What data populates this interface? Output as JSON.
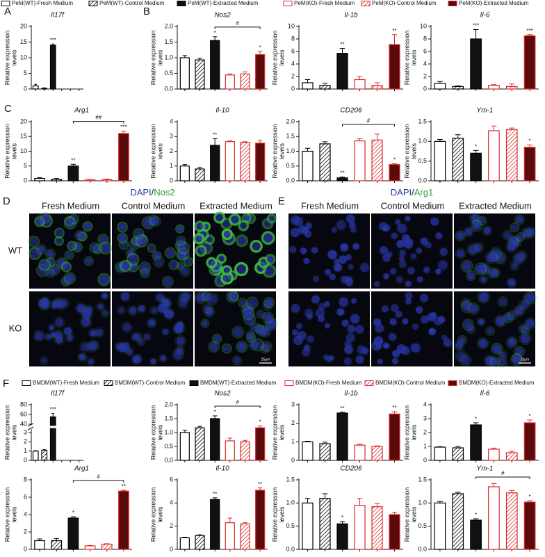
{
  "panel_labels": [
    "A",
    "B",
    "C",
    "D",
    "E",
    "F"
  ],
  "legend_top": [
    {
      "name": "PeM(WT)-Fresh Medium",
      "style": "open",
      "color": "#000000"
    },
    {
      "name": "PeM(WT)-Control Medium",
      "style": "hatch",
      "color": "#000000"
    },
    {
      "name": "PeM(WT)-Extracted Medium",
      "style": "solid",
      "color": "#000000"
    },
    {
      "name": "PeM(KO)-Fresh Medium",
      "style": "open",
      "color": "#d92b2b"
    },
    {
      "name": "PeM(KO)-Control Medium",
      "style": "hatch",
      "color": "#d92b2b"
    },
    {
      "name": "PeM(KO)-Extracted Medium",
      "style": "solid",
      "color": "#d92b2b"
    }
  ],
  "legend_f": [
    {
      "name": "BMDM(WT)-Fresh Medium",
      "style": "open",
      "color": "#000000"
    },
    {
      "name": "BMDM(WT)-Control Medium",
      "style": "hatch",
      "color": "#000000"
    },
    {
      "name": "BMDM(WT)-Extracted Medium",
      "style": "solid",
      "color": "#000000"
    },
    {
      "name": "BMDM(KO)-Fresh Medium",
      "style": "open",
      "color": "#d92b2b"
    },
    {
      "name": "BMDM(KO)-Control Medium",
      "style": "hatch",
      "color": "#d92b2b"
    },
    {
      "name": "BMDM(KO)-Extracted Medium",
      "style": "solid",
      "color": "#d92b2b"
    }
  ],
  "chart_data": [
    {
      "type": "bar",
      "title": "Il17f",
      "ylabel": [
        "Relative expression",
        "levels"
      ],
      "values": [
        1,
        0.2,
        14,
        null,
        null,
        null
      ],
      "errors": [
        0.5,
        0.2,
        0.4,
        null,
        null,
        null
      ],
      "stars": [
        null,
        null,
        "***",
        null,
        null,
        null
      ],
      "ylim": [
        0,
        20
      ],
      "yticks": [
        0,
        5,
        10,
        15,
        20
      ]
    },
    {
      "type": "bar",
      "title": "Nos2",
      "ylabel": [
        "Relative expression",
        "levels"
      ],
      "values": [
        1,
        0.93,
        1.55,
        0.45,
        0.48,
        1.1
      ],
      "errors": [
        0.07,
        0.05,
        0.12,
        0.03,
        0.07,
        0.1
      ],
      "stars": [
        null,
        null,
        "*",
        null,
        null,
        "*"
      ],
      "comparison": {
        "from": 2,
        "to": 5,
        "label": "#"
      },
      "ylim": [
        0,
        2
      ],
      "yticks": [
        {
          "value": 0,
          "label": "0.0"
        },
        0.5,
        {
          "value": 1,
          "label": "1.0"
        },
        1.5,
        {
          "value": 2,
          "label": "2.0"
        }
      ]
    },
    {
      "type": "bar",
      "title": "Il-1b",
      "ylabel": [
        "Relative expression",
        "levels"
      ],
      "values": [
        1,
        0.6,
        5.7,
        1.5,
        0.6,
        7.1
      ],
      "errors": [
        0.5,
        0.3,
        0.8,
        0.5,
        0.4,
        1.6
      ],
      "stars": [
        null,
        null,
        "**",
        null,
        null,
        "**"
      ],
      "ylim": [
        0,
        10
      ],
      "yticks": [
        0,
        2,
        4,
        6,
        8,
        10
      ]
    },
    {
      "type": "bar",
      "title": "Il-6",
      "ylabel": [
        "Relative expression",
        "levels"
      ],
      "values": [
        0.9,
        0.4,
        8,
        0.6,
        0.4,
        8.5
      ],
      "errors": [
        0.3,
        0.1,
        1.5,
        0.1,
        0.4,
        0.2
      ],
      "stars": [
        null,
        null,
        "***",
        null,
        null,
        "***"
      ],
      "ylim": [
        0,
        10
      ],
      "yticks": [
        0,
        2,
        4,
        6,
        8,
        10
      ]
    },
    {
      "type": "bar",
      "title": "Arg1",
      "ylabel": [
        "Relative expression",
        "levels"
      ],
      "values": [
        0.8,
        0.5,
        5,
        0.3,
        0.4,
        16
      ],
      "errors": [
        0.3,
        0.3,
        0.6,
        0.1,
        0.2,
        0.8
      ],
      "stars": [
        null,
        null,
        "**",
        null,
        null,
        "***"
      ],
      "comparison": {
        "from": 2,
        "to": 5,
        "label": "##"
      },
      "ylim": [
        0,
        20
      ],
      "yticks": [
        0,
        5,
        10,
        15,
        20
      ]
    },
    {
      "type": "bar",
      "title": "Il-10",
      "ylabel": [
        "Relative expression",
        "levels"
      ],
      "values": [
        1,
        0.8,
        2.4,
        2.65,
        2.6,
        2.55
      ],
      "errors": [
        0.1,
        0.1,
        0.45,
        0.05,
        0.05,
        0.2
      ],
      "stars": [
        null,
        null,
        "**",
        null,
        null,
        null
      ],
      "ylim": [
        0,
        4
      ],
      "yticks": [
        0,
        1,
        2,
        3,
        4
      ]
    },
    {
      "type": "bar",
      "title": "CD206",
      "ylabel": [
        "Relative expression",
        "levels"
      ],
      "values": [
        1,
        1.25,
        0.1,
        1.35,
        1.38,
        0.55
      ],
      "errors": [
        0.1,
        0.07,
        0.03,
        0.07,
        0.2,
        0.03
      ],
      "stars": [
        null,
        null,
        "**",
        null,
        null,
        "*"
      ],
      "comparison": {
        "from": 2,
        "to": 5,
        "label": "#"
      },
      "ylim": [
        0,
        2
      ],
      "yticks": [
        {
          "value": 0,
          "label": "0.0"
        },
        0.5,
        {
          "value": 1,
          "label": "1.0"
        },
        1.5,
        {
          "value": 2,
          "label": "2.0"
        }
      ]
    },
    {
      "type": "bar",
      "title": "Ym-1",
      "ylabel": [
        "Relative expression",
        "levels"
      ],
      "values": [
        1,
        1.08,
        0.7,
        1.27,
        1.3,
        0.85
      ],
      "errors": [
        0.05,
        0.09,
        0.07,
        0.12,
        0.04,
        0.06
      ],
      "stars": [
        null,
        null,
        "*",
        null,
        null,
        "*"
      ],
      "ylim": [
        0,
        1.5
      ],
      "yticks": [
        {
          "value": 0,
          "label": "0.0"
        },
        0.5,
        {
          "value": 1,
          "label": "1.0"
        },
        1.5
      ]
    },
    {
      "type": "bar",
      "title": "Il17f",
      "ylabel": [
        "Relative expression",
        "levels"
      ],
      "values": [
        1,
        1.1,
        55,
        null,
        null,
        null
      ],
      "errors": [
        0.05,
        0.05,
        7,
        null,
        null,
        null
      ],
      "stars": [
        null,
        null,
        "***",
        null,
        null,
        null
      ],
      "ylim": [
        0,
        80
      ],
      "yticks": [
        0,
        1,
        2,
        3,
        40,
        60,
        80
      ],
      "axis_break": [
        3,
        40
      ]
    },
    {
      "type": "bar",
      "title": "Nos2",
      "ylabel": [
        "Relative expression",
        "levels"
      ],
      "values": [
        1,
        1.17,
        1.5,
        0.7,
        0.67,
        1.17
      ],
      "errors": [
        0.08,
        0.05,
        0.1,
        0.1,
        0.05,
        0.07
      ],
      "stars": [
        null,
        null,
        "*",
        null,
        null,
        "*"
      ],
      "comparison": {
        "from": 2,
        "to": 5,
        "label": "#"
      },
      "ylim": [
        0,
        2
      ],
      "yticks": [
        {
          "value": 0,
          "label": "0.0"
        },
        0.5,
        {
          "value": 1,
          "label": "1.0"
        },
        1.5,
        {
          "value": 2,
          "label": "2.0"
        }
      ]
    },
    {
      "type": "bar",
      "title": "Il-1b",
      "ylabel": [
        "Relative expression",
        "levels"
      ],
      "values": [
        1,
        0.9,
        2.55,
        0.82,
        0.75,
        2.5
      ],
      "errors": [
        0.03,
        0.08,
        0.05,
        0.05,
        0.03,
        0.12
      ],
      "stars": [
        null,
        null,
        "**",
        null,
        null,
        "**"
      ],
      "ylim": [
        0,
        3
      ],
      "yticks": [
        0,
        1,
        2,
        3
      ]
    },
    {
      "type": "bar",
      "title": "Il-6",
      "ylabel": [
        "Relative expression",
        "levels"
      ],
      "values": [
        0.95,
        0.9,
        2.55,
        0.8,
        0.55,
        2.7
      ],
      "errors": [
        0.03,
        0.1,
        0.15,
        0.08,
        0.1,
        0.2
      ],
      "stars": [
        null,
        null,
        "*",
        null,
        null,
        "*"
      ],
      "ylim": [
        0,
        4
      ],
      "yticks": [
        0,
        1,
        2,
        3,
        4
      ]
    },
    {
      "type": "bar",
      "title": "Arg1",
      "ylabel": [
        "Relative expression",
        "levels"
      ],
      "values": [
        1,
        1,
        3.6,
        0.4,
        0.6,
        6.7
      ],
      "errors": [
        0.2,
        0.25,
        0.15,
        0.05,
        0.05,
        0.1
      ],
      "stars": [
        null,
        null,
        "*",
        null,
        null,
        "**"
      ],
      "comparison": {
        "from": 2,
        "to": 5,
        "label": "#"
      },
      "ylim": [
        0,
        8
      ],
      "yticks": [
        0,
        2,
        4,
        6,
        8
      ]
    },
    {
      "type": "bar",
      "title": "Il-10",
      "ylabel": [
        "Relative expression",
        "levels"
      ],
      "values": [
        1,
        1.2,
        4.3,
        2.3,
        2.2,
        5.1
      ],
      "errors": [
        0.05,
        0.05,
        0.15,
        0.4,
        0.1,
        0.2
      ],
      "stars": [
        null,
        null,
        "**",
        null,
        null,
        "**"
      ],
      "ylim": [
        0,
        6
      ],
      "yticks": [
        0,
        2,
        4,
        6
      ]
    },
    {
      "type": "bar",
      "title": "CD206",
      "ylabel": [
        "Relative expression",
        "levels"
      ],
      "values": [
        1,
        1.1,
        0.55,
        0.95,
        0.92,
        0.75
      ],
      "errors": [
        0.1,
        0.1,
        0.05,
        0.15,
        0.07,
        0.05
      ],
      "stars": [
        null,
        null,
        "*",
        null,
        null,
        null
      ],
      "ylim": [
        0,
        1.5
      ],
      "yticks": [
        {
          "value": 0,
          "label": "0.0"
        },
        0.5,
        {
          "value": 1,
          "label": "1.0"
        },
        1.5
      ]
    },
    {
      "type": "bar",
      "title": "Ym-1",
      "ylabel": [
        "Relative expression",
        "levels"
      ],
      "values": [
        1,
        1.2,
        0.63,
        1.35,
        1.22,
        1.02
      ],
      "errors": [
        0.03,
        0.03,
        0.03,
        0.07,
        0.05,
        0.03
      ],
      "stars": [
        null,
        null,
        "*",
        null,
        null,
        "*"
      ],
      "comparison": {
        "from": 2,
        "to": 5,
        "label": "#"
      },
      "ylim": [
        0,
        1.5
      ],
      "yticks": [
        {
          "value": 0,
          "label": "0.0"
        },
        0.5,
        {
          "value": 1,
          "label": "1.0"
        },
        1.5
      ]
    }
  ],
  "microscopy": [
    {
      "title": [
        {
          "text": "DAPI",
          "color": "#2b3aa0"
        },
        {
          "text": "/",
          "color": "#111111"
        },
        {
          "text": "Nos2",
          "color": "#2a9a3a"
        }
      ],
      "columns": [
        "Fresh Medium",
        "Control Medium",
        "Extracted Medium"
      ],
      "rows": [
        "WT",
        "KO"
      ],
      "scale_bar": "25μm"
    },
    {
      "title": [
        {
          "text": "DAPI",
          "color": "#2b3aa0"
        },
        {
          "text": "/",
          "color": "#111111"
        },
        {
          "text": "Arg1",
          "color": "#2a9a3a"
        }
      ],
      "columns": [
        "Fresh Medium",
        "Control Medium",
        "Extracted Medium"
      ],
      "rows": [
        "WT",
        "KO"
      ],
      "scale_bar": "25μm"
    }
  ]
}
